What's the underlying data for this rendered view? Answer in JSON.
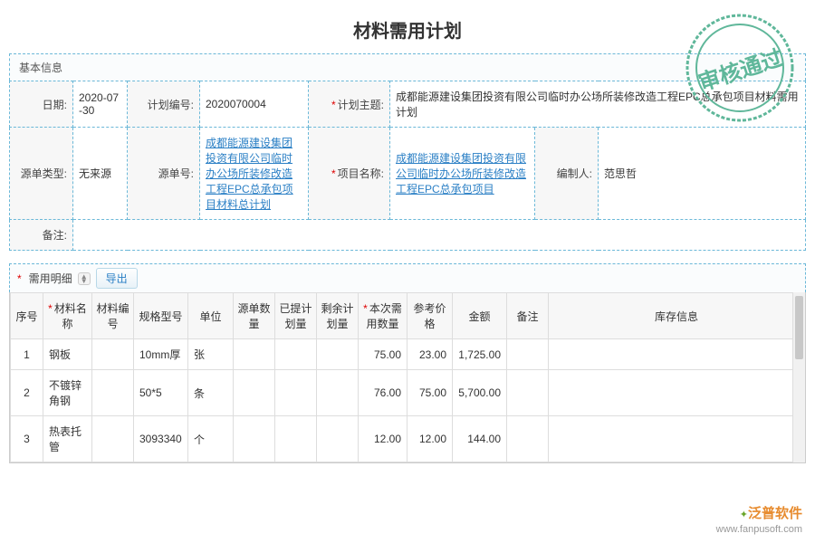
{
  "page": {
    "title": "材料需用计划",
    "stamp_text": "审核通过",
    "stamp_color": "#5fb79a"
  },
  "basic_info": {
    "section_label": "基本信息",
    "fields": {
      "date_label": "日期:",
      "date_value": "2020-07-30",
      "plan_no_label": "计划编号:",
      "plan_no_value": "2020070004",
      "plan_subject_label": "计划主题:",
      "plan_subject_value": "成都能源建设集团投资有限公司临时办公场所装修改造工程EPC总承包项目材料需用计划",
      "source_type_label": "源单类型:",
      "source_type_value": "无来源",
      "source_no_label": "源单号:",
      "source_no_value": "成都能源建设集团投资有限公司临时办公场所装修改造工程EPC总承包项目材料总计划",
      "project_name_label": "项目名称:",
      "project_name_value": "成都能源建设集团投资有限公司临时办公场所装修改造工程EPC总承包项目",
      "author_label": "编制人:",
      "author_value": "范思哲",
      "remark_label": "备注:"
    }
  },
  "detail": {
    "section_label": "需用明细",
    "export_label": "导出",
    "columns": {
      "seq": "序号",
      "name": "材料名称",
      "code": "材料编号",
      "spec": "规格型号",
      "unit": "单位",
      "src_qty": "源单数量",
      "planned": "已提计划量",
      "remain": "剩余计划量",
      "req_qty": "本次需用数量",
      "ref_price": "参考价格",
      "amount": "金额",
      "remark": "备注",
      "stock": "库存信息"
    },
    "required_cols": [
      "name",
      "req_qty"
    ],
    "rows": [
      {
        "seq": "1",
        "name": "钢板",
        "code": "",
        "spec": "10mm厚",
        "unit": "张",
        "src_qty": "",
        "planned": "",
        "remain": "",
        "req_qty": "75.00",
        "ref_price": "23.00",
        "amount": "1,725.00",
        "remark": "",
        "stock": ""
      },
      {
        "seq": "2",
        "name": "不镀锌角钢",
        "code": "",
        "spec": "50*5",
        "unit": "条",
        "src_qty": "",
        "planned": "",
        "remain": "",
        "req_qty": "76.00",
        "ref_price": "75.00",
        "amount": "5,700.00",
        "remark": "",
        "stock": ""
      },
      {
        "seq": "3",
        "name": "热表托管",
        "code": "",
        "spec": "3093340",
        "unit": "个",
        "src_qty": "",
        "planned": "",
        "remain": "",
        "req_qty": "12.00",
        "ref_price": "12.00",
        "amount": "144.00",
        "remark": "",
        "stock": ""
      }
    ]
  },
  "watermark": {
    "brand": "泛普软件",
    "url": "www.fanpusoft.com"
  },
  "colors": {
    "border": "#6bb8d8",
    "link": "#2a7fc5",
    "required": "#d00"
  }
}
